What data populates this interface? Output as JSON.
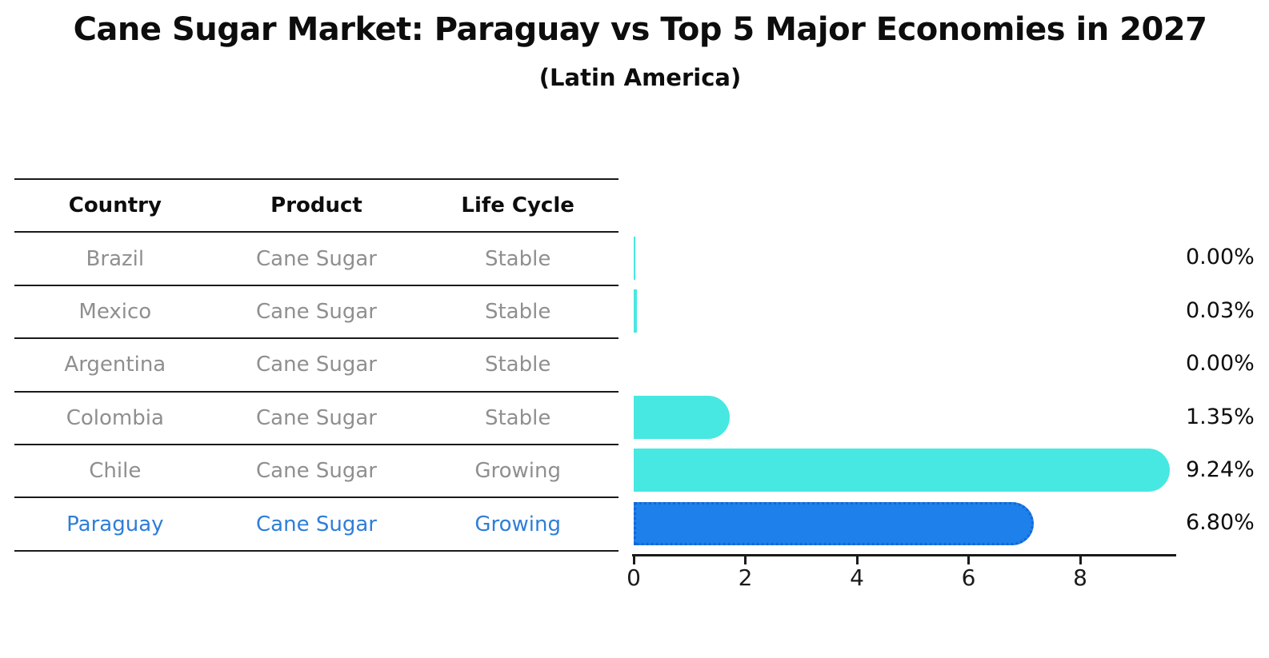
{
  "title": "Cane Sugar Market: Paraguay vs Top 5 Major Economies in 2027",
  "subtitle": "(Latin America)",
  "colors": {
    "bar_default": "#46e8e1",
    "bar_highlight": "#1e80ea",
    "bar_highlight_border": "#1565d8",
    "row_text": "#8f8f8f",
    "highlight_text": "#2e7ed8",
    "line": "#1a1a1a"
  },
  "table": {
    "headers": [
      "Country",
      "Product",
      "Life Cycle"
    ],
    "rows": [
      {
        "country": "Brazil",
        "product": "Cane Sugar",
        "life_cycle": "Stable",
        "highlighted": false
      },
      {
        "country": "Mexico",
        "product": "Cane Sugar",
        "life_cycle": "Stable",
        "highlighted": false
      },
      {
        "country": "Argentina",
        "product": "Cane Sugar",
        "life_cycle": "Stable",
        "highlighted": false
      },
      {
        "country": "Colombia",
        "product": "Cane Sugar",
        "life_cycle": "Stable",
        "highlighted": false
      },
      {
        "country": "Chile",
        "product": "Cane Sugar",
        "life_cycle": "Growing",
        "highlighted": false
      },
      {
        "country": "Paraguay",
        "product": "Cane Sugar",
        "life_cycle": "Growing",
        "highlighted": true
      }
    ]
  },
  "chart_data": {
    "type": "bar",
    "orientation": "horizontal",
    "title": "Cane Sugar Market: Paraguay vs Top 5 Major Economies in 2027",
    "subtitle": "(Latin America)",
    "categories": [
      "Brazil",
      "Mexico",
      "Argentina",
      "Colombia",
      "Chile",
      "Paraguay"
    ],
    "values": [
      0.0,
      0.03,
      0.0,
      1.35,
      9.24,
      6.8
    ],
    "value_labels": [
      "0.00%",
      "0.03%",
      "0.00%",
      "1.35%",
      "9.24%",
      "6.80%"
    ],
    "trace_visible": [
      true,
      true,
      false,
      true,
      true,
      true
    ],
    "highlight_index": 5,
    "xlabel": "",
    "ylabel": "",
    "xlim": [
      0,
      9.72
    ],
    "x_ticks": [
      0,
      2,
      4,
      6,
      8
    ],
    "grid": false,
    "legend": false
  }
}
